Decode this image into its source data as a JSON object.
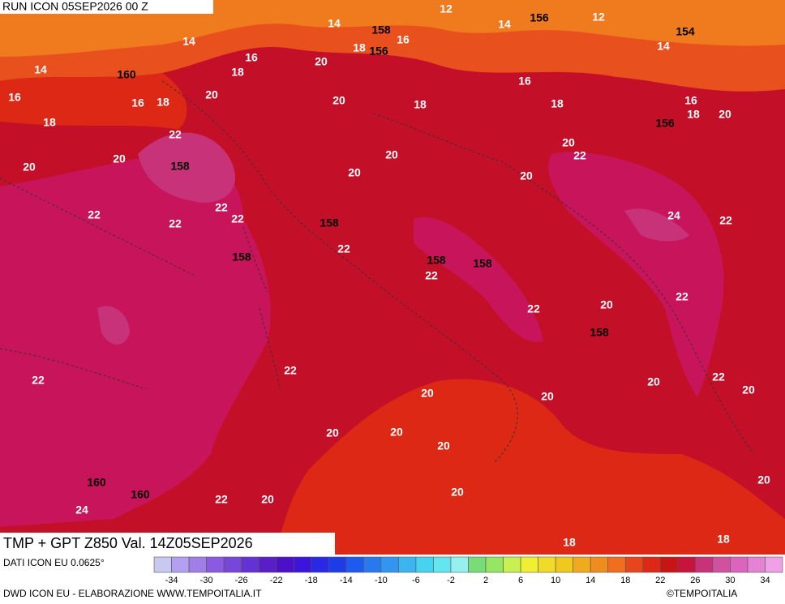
{
  "header": {
    "run": "RUN ICON 05SEP2026 00 Z",
    "title": "TMP + GPT Z850 Val. 14Z05SEP2026"
  },
  "map": {
    "contour_labels": [
      "14",
      "12",
      "14",
      "156",
      "12",
      "154",
      "14",
      "158",
      "16",
      "18",
      "156",
      "20",
      "14",
      "14",
      "160",
      "16",
      "18",
      "16",
      "16",
      "16",
      "18",
      "20",
      "20",
      "18",
      "18",
      "16",
      "18",
      "20",
      "156",
      "18",
      "22",
      "20",
      "22",
      "20",
      "20",
      "158",
      "20",
      "20",
      "20",
      "22",
      "22",
      "22",
      "22",
      "24",
      "22",
      "158",
      "22",
      "158",
      "158",
      "158",
      "22",
      "22",
      "20",
      "22",
      "158",
      "22",
      "22",
      "22",
      "20",
      "20",
      "20",
      "20",
      "20",
      "20",
      "20",
      "20",
      "160",
      "160",
      "20",
      "22",
      "20",
      "24",
      "18",
      "18"
    ]
  },
  "colorbar": {
    "colors": [
      "#c8c8f0",
      "#b4a0f0",
      "#a07ee8",
      "#8c5ae0",
      "#7846d8",
      "#6432d2",
      "#5a1ec8",
      "#4b10c8",
      "#3c14dc",
      "#2828e6",
      "#1e3ce6",
      "#1e5af0",
      "#2878f0",
      "#3296f0",
      "#3cb4f0",
      "#46d2f0",
      "#64e6f0",
      "#96f0f0",
      "#78dc78",
      "#96e664",
      "#c8f050",
      "#f0f032",
      "#f0dc28",
      "#f0c81e",
      "#f0aa1e",
      "#f08c1e",
      "#f06e1e",
      "#e6461e",
      "#dc2814",
      "#c81414",
      "#c8143c",
      "#c83278",
      "#d250a0",
      "#dc64be",
      "#e682d2",
      "#f0a0e6"
    ],
    "ticks": [
      -34,
      -30,
      -26,
      -22,
      -18,
      -14,
      -10,
      -6,
      -2,
      2,
      6,
      10,
      14,
      18,
      22,
      26,
      30,
      34
    ]
  },
  "footer": {
    "data": "DATI ICON EU 0.0625°",
    "source": "DWD ICON EU - ELABORAZIONE WWW.TEMPOITALIA.IT",
    "copyright": "©TEMPOITALIA"
  }
}
